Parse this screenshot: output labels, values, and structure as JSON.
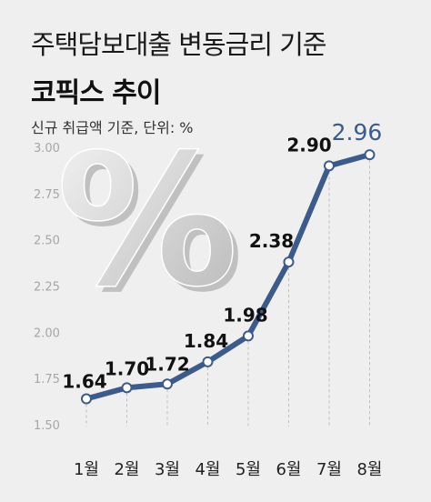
{
  "header": {
    "title_line1": "주택담보대출 변동금리 기준",
    "title_line2": "코픽스 추이",
    "subtitle": "신규 취급액 기준, 단위: %"
  },
  "decoration": {
    "percent_symbol": "%"
  },
  "colors": {
    "line": "#3c5b8a",
    "highlight_label": "#3c5b8a",
    "background": "#efefef",
    "gridline": "#bdbdbd",
    "percent_glyph": "#d4d4d4"
  },
  "chart_data": {
    "type": "line",
    "title": "주택담보대출 변동금리 기준 코픽스 추이",
    "subtitle": "신규 취급액 기준, 단위: %",
    "categories": [
      "1월",
      "2월",
      "3월",
      "4월",
      "5월",
      "6월",
      "7월",
      "8월"
    ],
    "series": [
      {
        "values": [
          1.64,
          1.7,
          1.72,
          1.84,
          1.98,
          2.38,
          2.9,
          2.96
        ]
      }
    ],
    "data_labels": [
      "1.64",
      "1.70",
      "1.72",
      "1.84",
      "1.98",
      "2.38",
      "2.90",
      "2.96"
    ],
    "yticks": [
      "3.00",
      "2.75",
      "2.50",
      "2.25",
      "2.00",
      "1.75",
      "1.50"
    ],
    "ylim": [
      1.5,
      3.0
    ],
    "grid": "vertical dashed",
    "legend": "none"
  }
}
